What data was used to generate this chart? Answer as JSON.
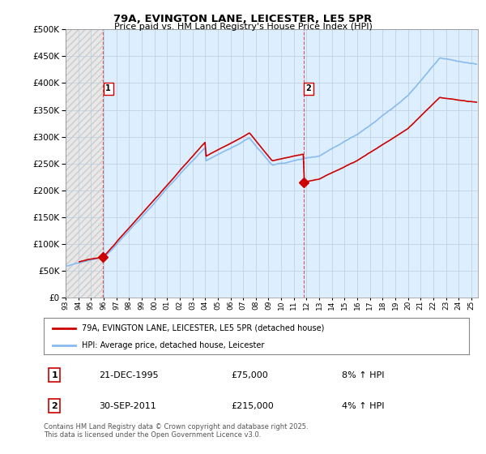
{
  "title": "79A, EVINGTON LANE, LEICESTER, LE5 5PR",
  "subtitle": "Price paid vs. HM Land Registry's House Price Index (HPI)",
  "ylim": [
    0,
    500000
  ],
  "xlim_start": 1993.0,
  "xlim_end": 2025.5,
  "purchase1_x": 1995.97,
  "purchase1_y": 75000,
  "purchase1_label": "1",
  "purchase2_x": 2011.75,
  "purchase2_y": 215000,
  "purchase2_label": "2",
  "line_color_property": "#cc0000",
  "line_color_hpi": "#88bbee",
  "bg_hatch_color": "#d8d8d8",
  "bg_active_color": "#ddeeff",
  "legend_entry1": "79A, EVINGTON LANE, LEICESTER, LE5 5PR (detached house)",
  "legend_entry2": "HPI: Average price, detached house, Leicester",
  "table_row1": [
    "1",
    "21-DEC-1995",
    "£75,000",
    "8% ↑ HPI"
  ],
  "table_row2": [
    "2",
    "30-SEP-2011",
    "£215,000",
    "4% ↑ HPI"
  ],
  "footer": "Contains HM Land Registry data © Crown copyright and database right 2025.\nThis data is licensed under the Open Government Licence v3.0.",
  "bg_color": "#ffffff",
  "grid_color": "#bbccdd"
}
